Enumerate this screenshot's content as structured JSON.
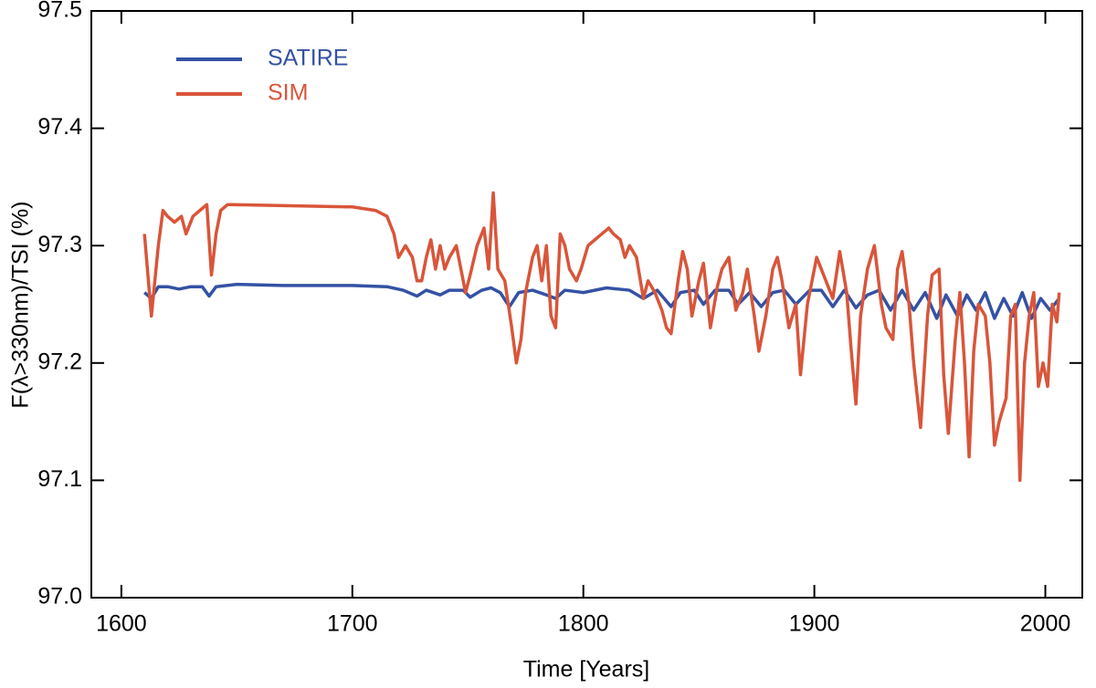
{
  "chart_data": {
    "type": "line",
    "xlabel": "Time [Years]",
    "ylabel": "F(λ>330nm)/TSI (%)",
    "xlim": [
      1587,
      2016
    ],
    "ylim": [
      97.0,
      97.5
    ],
    "xticks": [
      1600,
      1700,
      1800,
      1900,
      2000
    ],
    "yticks": [
      {
        "value": 97.0,
        "label": "97.0"
      },
      97.1,
      97.2,
      97.3,
      97.4,
      97.5
    ],
    "legend": "upper left",
    "grid": false,
    "series": [
      {
        "name": "SATIRE",
        "color": "#3452a4",
        "x": [
          1610,
          1613,
          1616,
          1620,
          1625,
          1630,
          1635,
          1638,
          1641,
          1650,
          1670,
          1700,
          1715,
          1722,
          1728,
          1732,
          1738,
          1742,
          1748,
          1751,
          1756,
          1760,
          1764,
          1768,
          1772,
          1778,
          1784,
          1788,
          1792,
          1800,
          1810,
          1820,
          1826,
          1832,
          1838,
          1842,
          1848,
          1852,
          1857,
          1863,
          1867,
          1872,
          1877,
          1882,
          1887,
          1892,
          1898,
          1903,
          1908,
          1913,
          1918,
          1923,
          1928,
          1933,
          1938,
          1943,
          1948,
          1953,
          1957,
          1962,
          1966,
          1970,
          1974,
          1978,
          1982,
          1986,
          1990,
          1994,
          1998,
          2002,
          2006
        ],
        "values": [
          97.26,
          97.255,
          97.265,
          97.265,
          97.263,
          97.265,
          97.265,
          97.257,
          97.265,
          97.267,
          97.266,
          97.266,
          97.265,
          97.262,
          97.257,
          97.262,
          97.258,
          97.262,
          97.262,
          97.256,
          97.262,
          97.264,
          97.26,
          97.248,
          97.26,
          97.262,
          97.258,
          97.255,
          97.262,
          97.26,
          97.264,
          97.262,
          97.255,
          97.262,
          97.248,
          97.26,
          97.262,
          97.25,
          97.262,
          97.262,
          97.25,
          97.26,
          97.248,
          97.26,
          97.262,
          97.25,
          97.262,
          97.262,
          97.248,
          97.262,
          97.247,
          97.258,
          97.262,
          97.245,
          97.262,
          97.245,
          97.26,
          97.238,
          97.258,
          97.24,
          97.258,
          97.245,
          97.26,
          97.238,
          97.255,
          97.24,
          97.26,
          97.238,
          97.255,
          97.245,
          97.255
        ]
      },
      {
        "name": "SIM",
        "color": "#d9553a",
        "x": [
          1610,
          1613,
          1616,
          1618,
          1620,
          1623,
          1626,
          1628,
          1631,
          1634,
          1637,
          1639,
          1641,
          1643,
          1646,
          1700,
          1710,
          1715,
          1718,
          1720,
          1723,
          1726,
          1728,
          1730,
          1732,
          1734,
          1736,
          1738,
          1740,
          1742,
          1745,
          1747,
          1749,
          1751,
          1754,
          1757,
          1759,
          1761,
          1763,
          1766,
          1769,
          1771,
          1773,
          1775,
          1778,
          1780,
          1782,
          1784,
          1786,
          1788,
          1790,
          1792,
          1794,
          1797,
          1799,
          1802,
          1805,
          1808,
          1811,
          1813,
          1816,
          1818,
          1820,
          1823,
          1826,
          1828,
          1831,
          1834,
          1836,
          1838,
          1841,
          1843,
          1845,
          1847,
          1850,
          1852,
          1855,
          1858,
          1860,
          1863,
          1866,
          1869,
          1871,
          1874,
          1876,
          1879,
          1882,
          1884,
          1886,
          1889,
          1892,
          1894,
          1897,
          1901,
          1905,
          1908,
          1911,
          1914,
          1916,
          1918,
          1920,
          1923,
          1926,
          1929,
          1931,
          1934,
          1936,
          1938,
          1941,
          1943,
          1946,
          1949,
          1951,
          1954,
          1956,
          1958,
          1961,
          1963,
          1965,
          1967,
          1969,
          1971,
          1974,
          1976,
          1978,
          1980,
          1983,
          1985,
          1987,
          1989,
          1991,
          1993,
          1995,
          1997,
          1999,
          2001,
          2003,
          2005,
          2006
        ],
        "values": [
          97.31,
          97.24,
          97.3,
          97.33,
          97.325,
          97.32,
          97.325,
          97.31,
          97.325,
          97.33,
          97.335,
          97.275,
          97.31,
          97.33,
          97.335,
          97.333,
          97.33,
          97.325,
          97.31,
          97.29,
          97.3,
          97.29,
          97.27,
          97.27,
          97.29,
          97.305,
          97.28,
          97.3,
          97.28,
          97.29,
          97.3,
          97.28,
          97.26,
          97.275,
          97.3,
          97.315,
          97.28,
          97.345,
          97.28,
          97.27,
          97.23,
          97.2,
          97.22,
          97.26,
          97.29,
          97.3,
          97.27,
          97.3,
          97.24,
          97.23,
          97.31,
          97.3,
          97.28,
          97.27,
          97.28,
          97.3,
          97.305,
          97.31,
          97.315,
          97.31,
          97.305,
          97.29,
          97.3,
          97.29,
          97.255,
          97.27,
          97.26,
          97.245,
          97.23,
          97.225,
          97.27,
          97.295,
          97.28,
          97.24,
          97.27,
          97.285,
          97.23,
          97.265,
          97.28,
          97.29,
          97.245,
          97.26,
          97.28,
          97.24,
          97.21,
          97.24,
          97.28,
          97.29,
          97.27,
          97.23,
          97.25,
          97.19,
          97.25,
          97.29,
          97.27,
          97.255,
          97.295,
          97.26,
          97.21,
          97.165,
          97.24,
          97.28,
          97.3,
          97.25,
          97.23,
          97.22,
          97.28,
          97.295,
          97.25,
          97.2,
          97.145,
          97.24,
          97.275,
          97.28,
          97.19,
          97.14,
          97.22,
          97.26,
          97.2,
          97.12,
          97.21,
          97.25,
          97.24,
          97.2,
          97.13,
          97.15,
          97.17,
          97.24,
          97.25,
          97.1,
          97.2,
          97.24,
          97.26,
          97.18,
          97.2,
          97.18,
          97.25,
          97.235,
          97.26
        ]
      }
    ]
  }
}
